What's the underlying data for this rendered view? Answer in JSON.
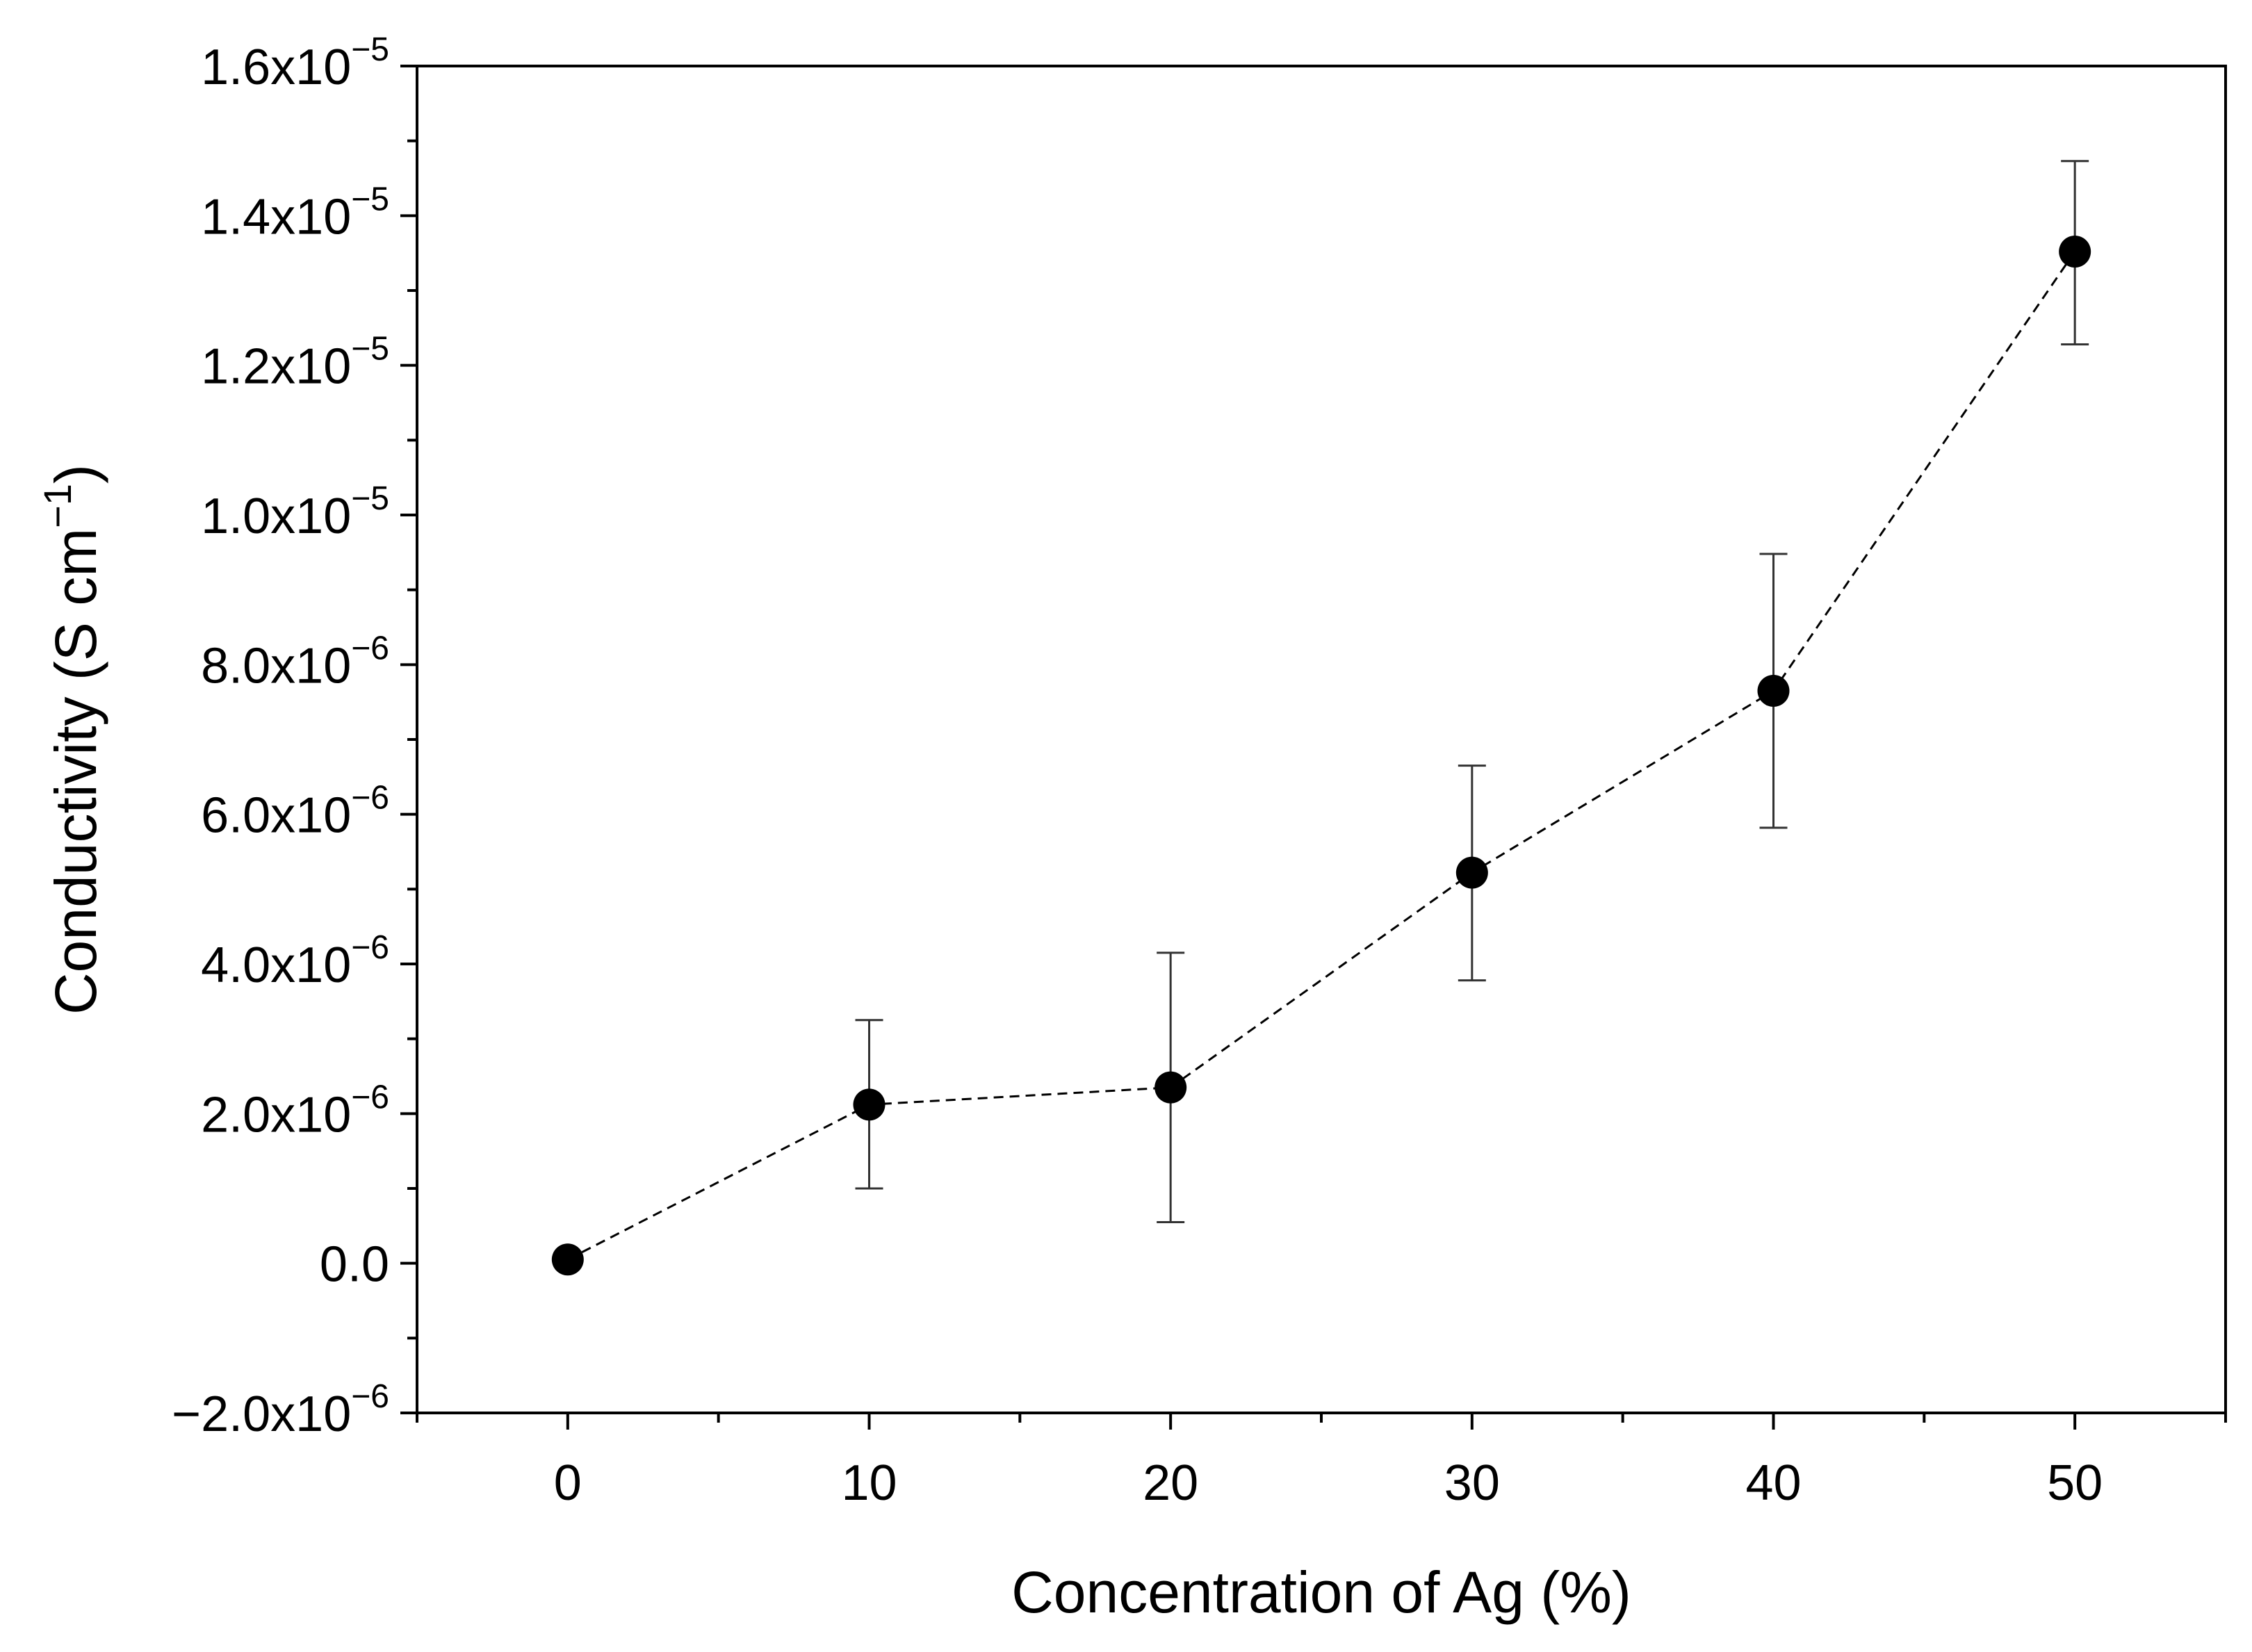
{
  "chart_data": {
    "type": "scatter",
    "title": "",
    "xlabel": "Concentration of Ag (%)",
    "ylabel": "Conductivity (S cm",
    "ylabel_superscript": "−1",
    "ylabel_close": ")",
    "xlim": [
      -5,
      55
    ],
    "ylim": [
      -2e-06,
      1.6e-05
    ],
    "x_ticks": [
      {
        "value": 0,
        "label": "0"
      },
      {
        "value": 10,
        "label": "10"
      },
      {
        "value": 20,
        "label": "20"
      },
      {
        "value": 30,
        "label": "30"
      },
      {
        "value": 40,
        "label": "40"
      },
      {
        "value": 50,
        "label": "50"
      }
    ],
    "x_minor_ticks": [
      -5,
      5,
      15,
      25,
      35,
      45,
      55
    ],
    "y_ticks": [
      {
        "value": -2e-06,
        "mantissa": "−2.0x10",
        "exp": "−6"
      },
      {
        "value": 0,
        "mantissa": "0.0",
        "exp": ""
      },
      {
        "value": 2e-06,
        "mantissa": "2.0x10",
        "exp": "−6"
      },
      {
        "value": 4e-06,
        "mantissa": "4.0x10",
        "exp": "−6"
      },
      {
        "value": 6e-06,
        "mantissa": "6.0x10",
        "exp": "−6"
      },
      {
        "value": 8e-06,
        "mantissa": "8.0x10",
        "exp": "−6"
      },
      {
        "value": 1e-05,
        "mantissa": "1.0x10",
        "exp": "−5"
      },
      {
        "value": 1.2e-05,
        "mantissa": "1.2x10",
        "exp": "−5"
      },
      {
        "value": 1.4e-05,
        "mantissa": "1.4x10",
        "exp": "−5"
      },
      {
        "value": 1.6e-05,
        "mantissa": "1.6x10",
        "exp": "−5"
      }
    ],
    "y_minor_ticks": [
      -1e-06,
      1e-06,
      3e-06,
      5e-06,
      7e-06,
      9e-06,
      1.1e-05,
      1.3e-05,
      1.5e-05
    ],
    "series": [
      {
        "name": "Conductivity",
        "marker": "circle",
        "line_style": "dashed",
        "color": "#000000",
        "points": [
          {
            "x": 0,
            "y": 5e-08,
            "err_low": null,
            "err_high": null
          },
          {
            "x": 10,
            "y": 2.12e-06,
            "err_low": 1e-06,
            "err_high": 3.25e-06
          },
          {
            "x": 20,
            "y": 2.35e-06,
            "err_low": 5.5e-07,
            "err_high": 4.15e-06
          },
          {
            "x": 30,
            "y": 5.22e-06,
            "err_low": 3.78e-06,
            "err_high": 6.65e-06
          },
          {
            "x": 40,
            "y": 7.65e-06,
            "err_low": 5.82e-06,
            "err_high": 9.48e-06
          },
          {
            "x": 50,
            "y": 1.352e-05,
            "err_low": 1.228e-05,
            "err_high": 1.473e-05
          }
        ]
      }
    ],
    "grid": false,
    "legend": "none"
  }
}
